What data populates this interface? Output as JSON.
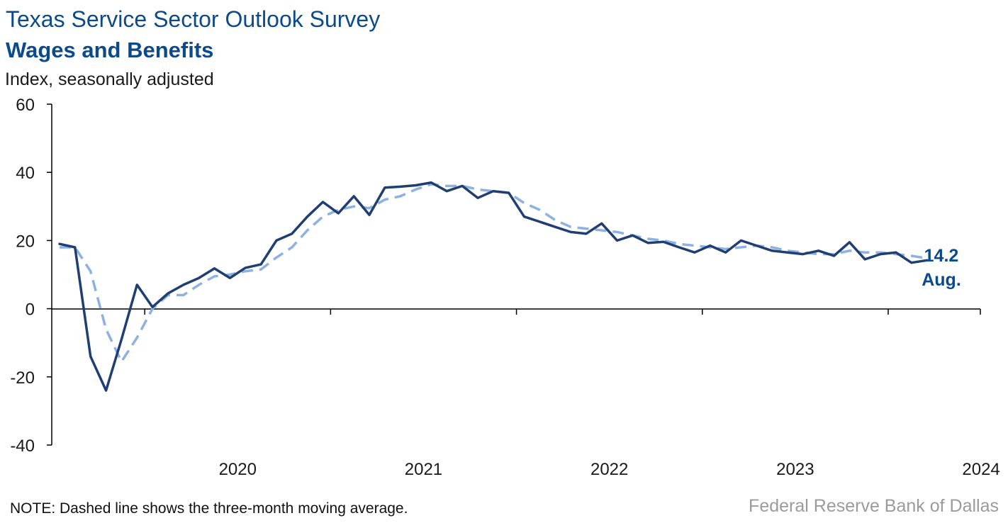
{
  "header": {
    "title": "Texas Service Sector Outlook Survey",
    "subtitle": "Wages and Benefits",
    "units": "Index, seasonally adjusted"
  },
  "footer": {
    "note": "NOTE: Dashed line shows the three-month moving average.",
    "source": "Federal Reserve Bank of Dallas"
  },
  "colors": {
    "index_line": "#1f3f73",
    "moving_average": "#8db1e0",
    "label": "#0b4a8b",
    "axis": "#000000"
  },
  "chart_data": {
    "type": "line",
    "title": "Wages and Benefits",
    "ylabel": "Index, seasonally adjusted",
    "ylim": [
      -40,
      60
    ],
    "yticks": [
      -40,
      -20,
      0,
      20,
      40,
      60
    ],
    "x_start": "2019-07",
    "x_end": "2024-08",
    "year_labels": [
      "2020",
      "2021",
      "2022",
      "2023",
      "2024"
    ],
    "grid": false,
    "series": [
      {
        "style": "solid",
        "values": [
          19.0,
          18.0,
          -14.0,
          -24.0,
          -9.0,
          7.0,
          0.5,
          4.5,
          7.0,
          9.0,
          11.8,
          9.0,
          12.0,
          13.0,
          20.0,
          22.0,
          27.0,
          31.3,
          28.0,
          33.0,
          27.5,
          35.5,
          35.8,
          36.2,
          37.0,
          34.5,
          36.0,
          32.5,
          34.5,
          34.0,
          27.0,
          25.5,
          24.0,
          22.5,
          22.0,
          25.0,
          20.0,
          21.5,
          19.3,
          19.6,
          18.0,
          16.5,
          18.5,
          16.5,
          20.0,
          18.5,
          17.0,
          16.5,
          16.0,
          17.0,
          15.5,
          19.5,
          14.5,
          16.0,
          16.5,
          13.5,
          14.2
        ],
        "end_label_value": "14.2",
        "end_label_month": "Aug."
      },
      {
        "style": "dashed",
        "values": [
          18.0,
          18.0,
          11.0,
          -6.0,
          -15.5,
          -8.5,
          0.0,
          4.0,
          4.0,
          7.0,
          9.5,
          10.0,
          11.0,
          11.5,
          15.0,
          18.0,
          23.0,
          27.0,
          29.0,
          30.0,
          29.5,
          32.0,
          33.0,
          35.0,
          36.5,
          36.0,
          36.0,
          35.0,
          34.5,
          34.0,
          31.0,
          29.0,
          26.0,
          24.0,
          23.5,
          23.0,
          22.5,
          21.5,
          20.5,
          20.0,
          19.0,
          18.5,
          18.0,
          17.5,
          18.0,
          18.5,
          18.0,
          17.0,
          16.5,
          16.0,
          16.0,
          17.0,
          16.5,
          16.5,
          16.0,
          15.5,
          14.8
        ]
      }
    ]
  }
}
